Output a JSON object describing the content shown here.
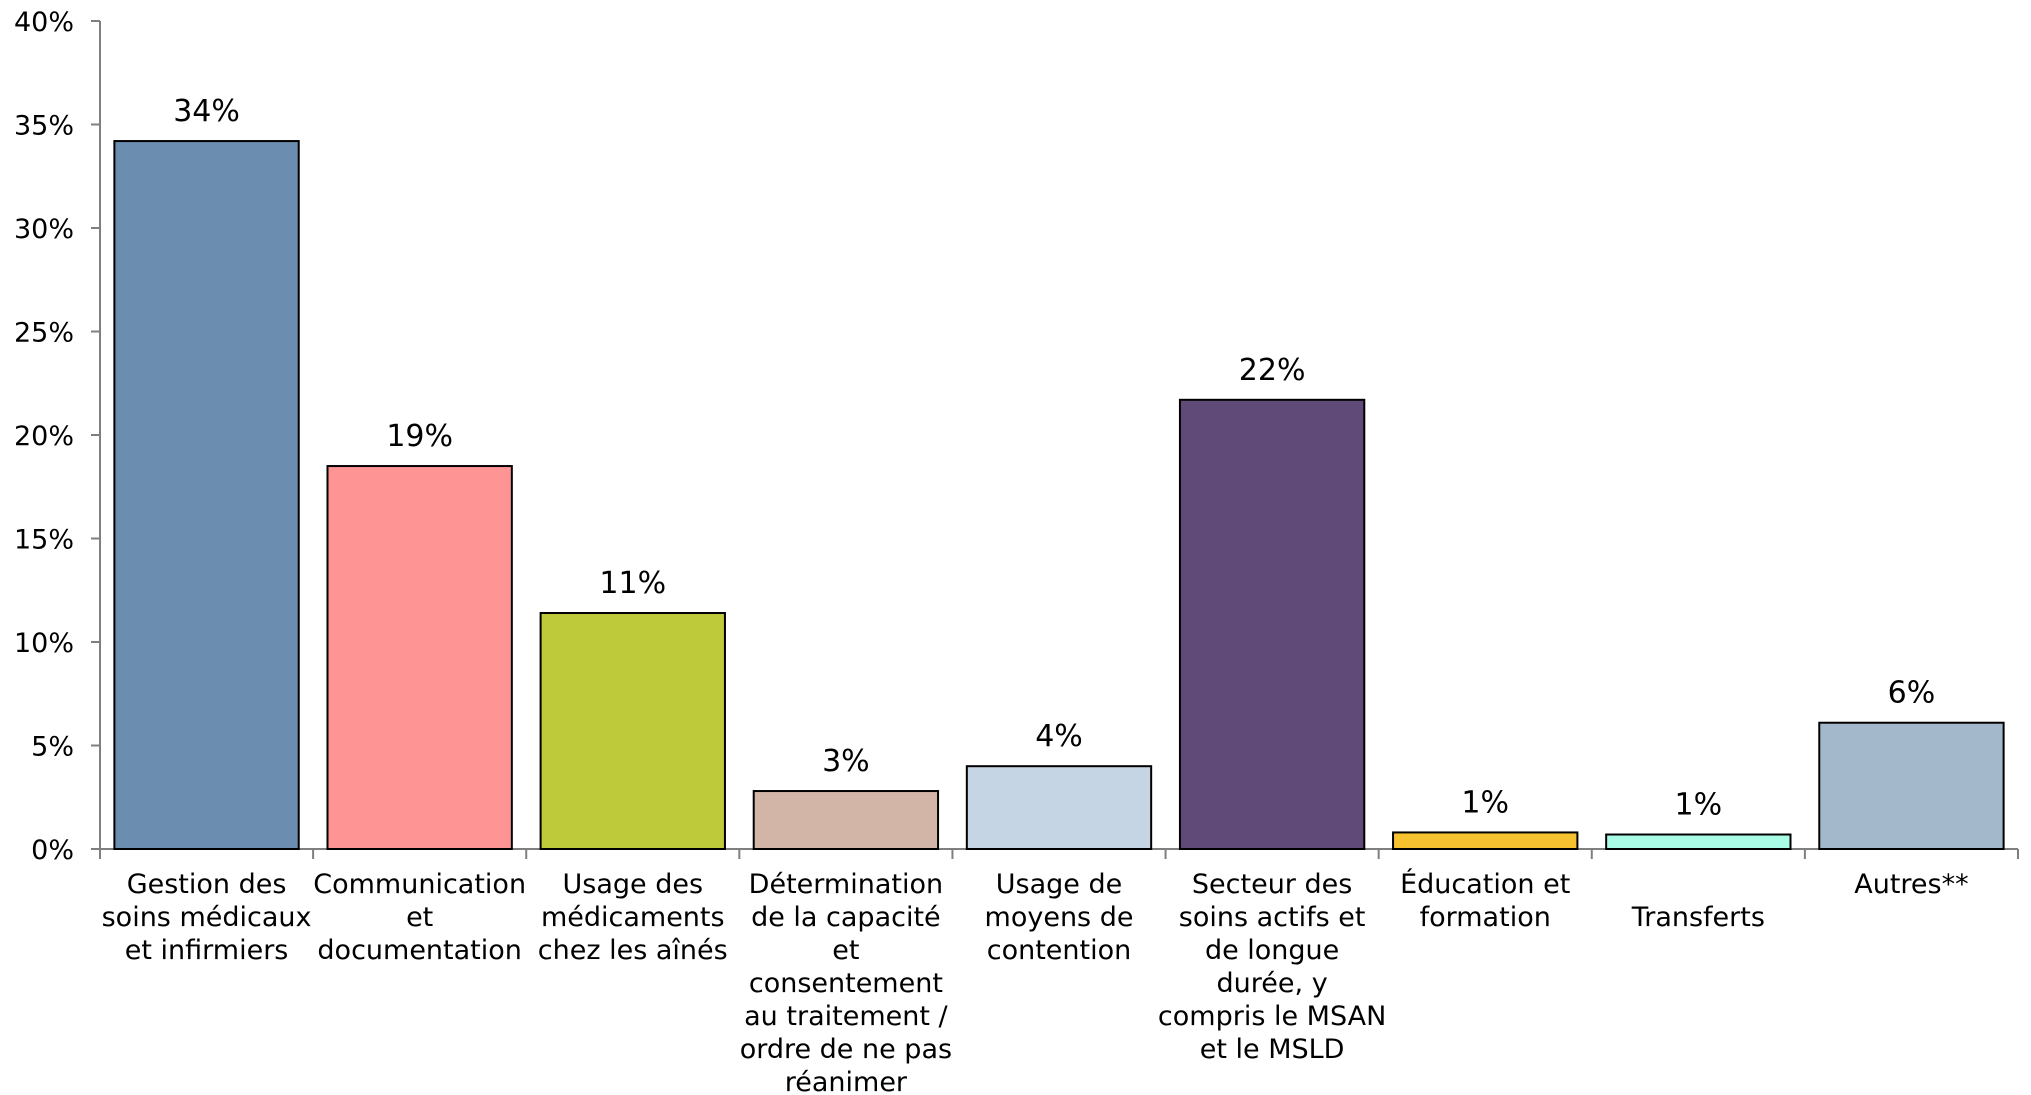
{
  "chart_data": {
    "type": "bar",
    "title": "",
    "xlabel": "",
    "ylabel": "",
    "ylim": [
      0,
      40
    ],
    "yticks": [
      0,
      5,
      10,
      15,
      20,
      25,
      30,
      35,
      40
    ],
    "ytick_labels": [
      "0%",
      "5%",
      "10%",
      "15%",
      "20%",
      "25%",
      "30%",
      "35%",
      "40%"
    ],
    "grid": false,
    "legend": "none",
    "categories": [
      "Gestion des soins médicaux et infirmiers",
      "Communication et documentation",
      "Usage des médicaments chez les aînés",
      "Détermination de la capacité et consentement au traitement / ordre de ne pas réanimer",
      "Usage de moyens de contention",
      "Secteur des soins actifs et de longue durée, y compris le MSAN et le MSLD",
      "Éducation et formation",
      "Transferts",
      "Autres**"
    ],
    "category_lines": [
      [
        "Gestion des",
        "soins médicaux",
        "et infirmiers"
      ],
      [
        "Communication",
        "et",
        "documentation"
      ],
      [
        "Usage des",
        "médicaments",
        "chez les aînés"
      ],
      [
        "Détermination",
        "de la capacité",
        "et",
        "consentement",
        "au traitement /",
        "ordre de ne pas",
        "réanimer"
      ],
      [
        "Usage de",
        "moyens de",
        "contention"
      ],
      [
        "Secteur des",
        "soins actifs et",
        "de longue",
        "durée, y",
        "compris le MSAN",
        "et le MSLD"
      ],
      [
        "Éducation et",
        "formation"
      ],
      [
        "Transferts"
      ],
      [
        "Autres**"
      ]
    ],
    "category_line_offset": [
      0,
      0,
      0,
      0,
      0,
      0,
      0,
      1,
      0
    ],
    "values": [
      34.2,
      18.5,
      11.4,
      2.8,
      4.0,
      21.7,
      0.8,
      0.7,
      6.1
    ],
    "data_labels": [
      "34%",
      "19%",
      "11%",
      "3%",
      "4%",
      "22%",
      "1%",
      "1%",
      "6%"
    ],
    "colors": [
      "#6a8db0",
      "#fe9594",
      "#bfca3b",
      "#d3b5a8",
      "#c6d5e3",
      "#604a78",
      "#f6c22f",
      "#a9fde6",
      "#a4b8cc"
    ],
    "edge_color": "#000000"
  }
}
